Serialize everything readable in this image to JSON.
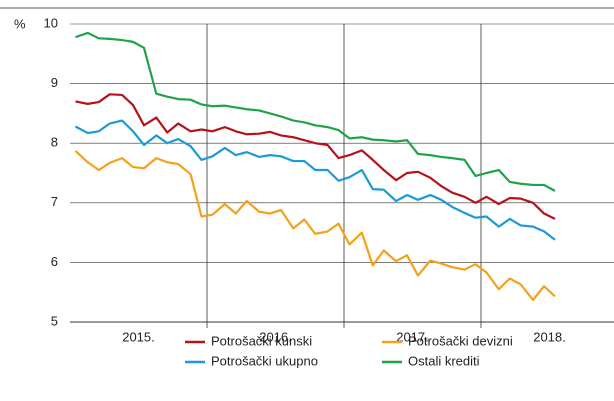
{
  "chart_data": {
    "type": "line",
    "y_unit": "%",
    "x": [
      2015.04,
      2015.13,
      2015.21,
      2015.29,
      2015.38,
      2015.46,
      2015.54,
      2015.63,
      2015.71,
      2015.79,
      2015.88,
      2015.96,
      2016.04,
      2016.13,
      2016.21,
      2016.29,
      2016.38,
      2016.46,
      2016.54,
      2016.63,
      2016.71,
      2016.79,
      2016.88,
      2016.96,
      2017.04,
      2017.13,
      2017.21,
      2017.29,
      2017.38,
      2017.46,
      2017.54,
      2017.63,
      2017.71,
      2017.79,
      2017.88,
      2017.96,
      2018.04,
      2018.13,
      2018.21,
      2018.29,
      2018.38,
      2018.46,
      2018.54
    ],
    "series": [
      {
        "name": "Potrošački kunski",
        "color": "#b5121b",
        "values": [
          8.7,
          8.66,
          8.69,
          8.82,
          8.81,
          8.64,
          8.3,
          8.43,
          8.18,
          8.33,
          8.2,
          8.23,
          8.2,
          8.27,
          8.2,
          8.15,
          8.16,
          8.19,
          8.13,
          8.1,
          8.05,
          8.0,
          7.97,
          7.75,
          7.8,
          7.88,
          7.72,
          7.55,
          7.38,
          7.5,
          7.52,
          7.42,
          7.28,
          7.17,
          7.1,
          7.0,
          7.1,
          6.98,
          7.08,
          7.07,
          7.0,
          6.82,
          6.73
        ]
      },
      {
        "name": "Potrošački devizni",
        "color": "#f5a01a",
        "values": [
          7.87,
          7.68,
          7.55,
          7.67,
          7.75,
          7.6,
          7.58,
          7.75,
          7.68,
          7.65,
          7.48,
          6.77,
          6.8,
          6.98,
          6.82,
          7.03,
          6.85,
          6.82,
          6.88,
          6.57,
          6.72,
          6.48,
          6.52,
          6.65,
          6.3,
          6.5,
          5.95,
          6.2,
          6.02,
          6.12,
          5.78,
          6.03,
          5.98,
          5.92,
          5.88,
          5.97,
          5.83,
          5.55,
          5.73,
          5.63,
          5.37,
          5.6,
          5.43
        ]
      },
      {
        "name": "Potrošački ukupno",
        "color": "#1a9ad6",
        "values": [
          8.28,
          8.17,
          8.2,
          8.33,
          8.38,
          8.2,
          7.97,
          8.13,
          8.0,
          8.07,
          7.95,
          7.72,
          7.78,
          7.92,
          7.8,
          7.85,
          7.77,
          7.8,
          7.78,
          7.7,
          7.7,
          7.55,
          7.55,
          7.37,
          7.43,
          7.55,
          7.23,
          7.22,
          7.03,
          7.13,
          7.05,
          7.13,
          7.05,
          6.93,
          6.83,
          6.75,
          6.77,
          6.6,
          6.73,
          6.62,
          6.6,
          6.52,
          6.38
        ]
      },
      {
        "name": "Ostali krediti",
        "color": "#1ea34a",
        "values": [
          9.78,
          9.85,
          9.76,
          9.75,
          9.73,
          9.7,
          9.6,
          8.83,
          8.78,
          8.74,
          8.73,
          8.65,
          8.62,
          8.63,
          8.6,
          8.57,
          8.55,
          8.5,
          8.45,
          8.38,
          8.35,
          8.3,
          8.27,
          8.22,
          8.08,
          8.1,
          8.06,
          8.05,
          8.03,
          8.05,
          7.82,
          7.8,
          7.77,
          7.75,
          7.72,
          7.45,
          7.5,
          7.55,
          7.35,
          7.32,
          7.3,
          7.3,
          7.2
        ]
      }
    ],
    "xlim": [
      2015,
      2019
    ],
    "xticks": [
      {
        "value": 2015.5,
        "label": "2015."
      },
      {
        "value": 2016.5,
        "label": "2016."
      },
      {
        "value": 2017.5,
        "label": "2017."
      },
      {
        "value": 2018.5,
        "label": "2018."
      }
    ],
    "xgrid": [
      2016,
      2017,
      2018
    ],
    "ylim": [
      5,
      10
    ],
    "yticks": [
      5,
      6,
      7,
      8,
      9,
      10
    ],
    "grid": true,
    "legend": "bottom"
  }
}
